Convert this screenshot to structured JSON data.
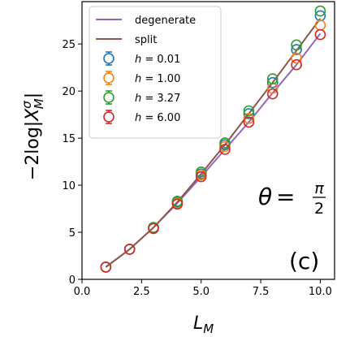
{
  "chart_data": {
    "type": "line",
    "xlabel": "L_M",
    "ylabel": "−2log|X_M^σ|",
    "xlim": [
      0.0,
      10.6
    ],
    "ylim": [
      0,
      29.5
    ],
    "xticks": [
      0.0,
      2.5,
      5.0,
      7.5,
      10.0
    ],
    "xtick_labels": [
      "0.0",
      "2.5",
      "5.0",
      "7.5",
      "10.0"
    ],
    "yticks": [
      0,
      5,
      10,
      15,
      20,
      25
    ],
    "ytick_labels": [
      "0",
      "5",
      "10",
      "15",
      "20",
      "25"
    ],
    "grid": false,
    "legend_position": "top-left",
    "x": [
      1,
      2,
      3,
      4,
      5,
      6,
      7,
      8,
      9,
      10
    ],
    "lines": [
      {
        "name": "degenerate",
        "color": "#9467bd",
        "values": [
          1.3,
          3.2,
          5.5,
          8.1,
          10.9,
          13.8,
          16.7,
          19.8,
          22.8,
          26.1
        ]
      },
      {
        "name": "split",
        "color": "#8c564b",
        "values": [
          1.3,
          3.2,
          5.5,
          8.2,
          11.2,
          14.3,
          17.6,
          20.9,
          24.3,
          27.7
        ]
      }
    ],
    "series": [
      {
        "name": "h = 0.01",
        "label_symbol": "h",
        "label_value": "= 0.01",
        "color": "#1f77b4",
        "values": [
          1.3,
          3.2,
          5.5,
          8.2,
          11.2,
          14.3,
          17.6,
          20.9,
          24.4,
          28.0
        ]
      },
      {
        "name": "h = 1.00",
        "label_symbol": "h",
        "label_value": "= 1.00",
        "color": "#ff7f0e",
        "values": [
          1.3,
          3.2,
          5.5,
          8.1,
          11.1,
          14.1,
          17.1,
          20.3,
          23.5,
          27.0
        ]
      },
      {
        "name": "h = 3.27",
        "label_symbol": "h",
        "label_value": "= 3.27",
        "color": "#2ca02c",
        "values": [
          1.3,
          3.2,
          5.5,
          8.3,
          11.4,
          14.5,
          17.9,
          21.3,
          24.9,
          28.5
        ]
      },
      {
        "name": "h = 6.00",
        "label_symbol": "h",
        "label_value": "= 6.00",
        "color": "#d62728",
        "values": [
          1.3,
          3.2,
          5.4,
          8.0,
          10.9,
          13.8,
          16.7,
          19.7,
          22.8,
          26.0
        ]
      }
    ],
    "annotations": {
      "theta_symbol": "θ",
      "theta_equals": "=",
      "theta_numerator": "π",
      "theta_denominator": "2",
      "panel_label": "(c)"
    }
  }
}
